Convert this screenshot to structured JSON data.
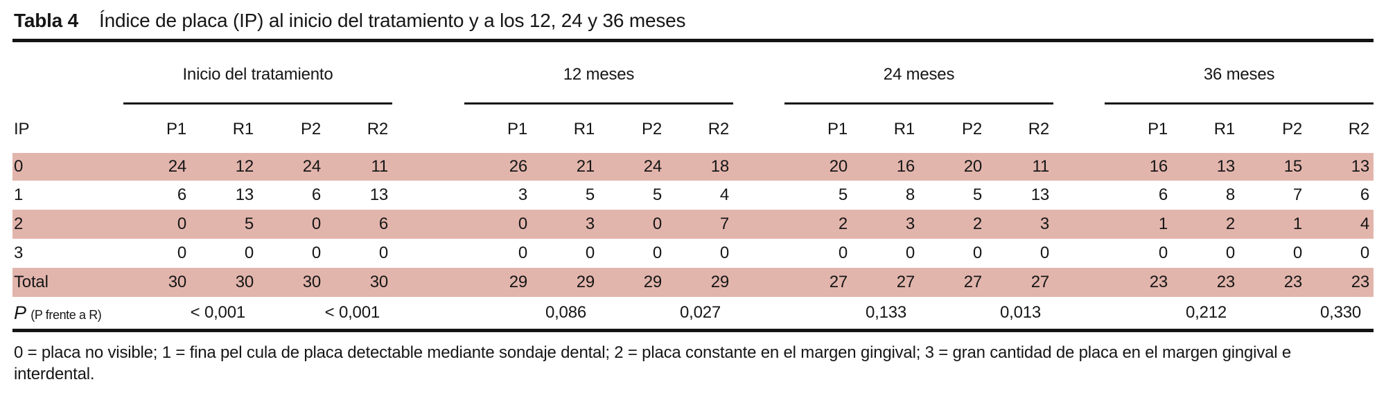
{
  "title": {
    "label": "Tabla 4",
    "text": "Índice de placa (IP) al inicio del tratamiento y a los 12, 24 y 36 meses"
  },
  "colors": {
    "row_shade": "#e2b5ac",
    "rule": "#141414",
    "text": "#161616"
  },
  "chart_data": {
    "type": "table",
    "title": "Tabla 4 — Índice de placa (IP) al inicio del tratamiento y a los 12, 24 y 36 meses",
    "row_header": "IP",
    "groups": [
      {
        "label": "Inicio del tratamiento",
        "cols": [
          "P1",
          "R1",
          "P2",
          "R2"
        ]
      },
      {
        "label": "12 meses",
        "cols": [
          "P1",
          "R1",
          "P2",
          "R2"
        ]
      },
      {
        "label": "24 meses",
        "cols": [
          "P1",
          "R1",
          "P2",
          "R2"
        ]
      },
      {
        "label": "36 meses",
        "cols": [
          "P1",
          "R1",
          "P2",
          "R2"
        ]
      }
    ],
    "rows": [
      {
        "label": "0",
        "shaded": true,
        "values": [
          24,
          12,
          24,
          11,
          26,
          21,
          24,
          18,
          20,
          16,
          20,
          11,
          16,
          13,
          15,
          13
        ]
      },
      {
        "label": "1",
        "shaded": false,
        "values": [
          6,
          13,
          6,
          13,
          3,
          5,
          5,
          4,
          5,
          8,
          5,
          13,
          6,
          8,
          7,
          6
        ]
      },
      {
        "label": "2",
        "shaded": true,
        "values": [
          0,
          5,
          0,
          6,
          0,
          3,
          0,
          7,
          2,
          3,
          2,
          3,
          1,
          2,
          1,
          4
        ]
      },
      {
        "label": "3",
        "shaded": false,
        "values": [
          0,
          0,
          0,
          0,
          0,
          0,
          0,
          0,
          0,
          0,
          0,
          0,
          0,
          0,
          0,
          0
        ]
      },
      {
        "label": "Total",
        "shaded": true,
        "values": [
          30,
          30,
          30,
          30,
          29,
          29,
          29,
          29,
          27,
          27,
          27,
          27,
          23,
          23,
          23,
          23
        ]
      }
    ],
    "p_row": {
      "label_main": "P",
      "label_sub": "(P frente a R)",
      "values": [
        "< 0,001",
        "< 0,001",
        "0,086",
        "0,027",
        "0,133",
        "0,013",
        "0,212",
        "0,330"
      ]
    }
  },
  "footnote": "0 = placa no visible; 1 = fina pel cula de placa detectable mediante sondaje dental; 2 = placa constante en el margen gingival; 3 = gran cantidad de placa en el margen gingival e interdental."
}
